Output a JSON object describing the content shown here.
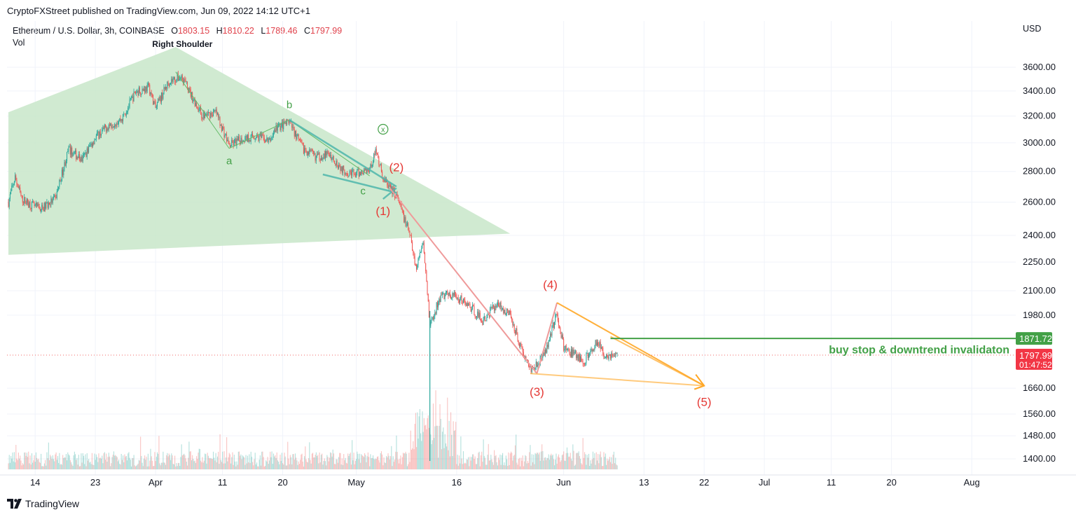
{
  "header": {
    "published_by": "CryptoFXStreet published on TradingView.com, Jun 09, 2022 14:12 UTC+1"
  },
  "legend": {
    "symbol": "Ethereum / U.S. Dollar, 3h, COINBASE",
    "open_label": "O",
    "open": "1803.15",
    "high_label": "H",
    "high": "1810.22",
    "low_label": "L",
    "low": "1789.46",
    "close_label": "C",
    "close": "1797.99",
    "volume_label": "Vol"
  },
  "footer": {
    "brand": "TradingView"
  },
  "colors": {
    "up": "#26a69a",
    "down": "#ef5350",
    "pattern_fill": "#c8e6c9",
    "green_line": "#43a047",
    "orange": "#ffa726",
    "red_text": "#e53935",
    "teal_line": "#4db6ac"
  },
  "chart_data": {
    "type": "candlestick",
    "currency": "USD",
    "y_scale": "log",
    "y_ticks": [
      3600,
      3400,
      3200,
      3000,
      2800,
      2600,
      2400,
      2250,
      2100,
      1980,
      1660,
      1560,
      1480,
      1400
    ],
    "y_tick_labels": [
      "3600.00",
      "3400.00",
      "3200.00",
      "3000.00",
      "2800.00",
      "2600.00",
      "2400.00",
      "2250.00",
      "2100.00",
      "1980.00",
      "1660.00",
      "1560.00",
      "1480.00",
      "1400.00"
    ],
    "x_ticks": [
      "14",
      "23",
      "Apr",
      "11",
      "20",
      "May",
      "16",
      "Jun",
      "13",
      "22",
      "Jul",
      "11",
      "20",
      "Aug"
    ],
    "price_path": [
      {
        "date": "2022-03-10",
        "price": 2600
      },
      {
        "date": "2022-03-11",
        "price": 2760
      },
      {
        "date": "2022-03-12",
        "price": 2620
      },
      {
        "date": "2022-03-14",
        "price": 2570
      },
      {
        "date": "2022-03-15",
        "price": 2560
      },
      {
        "date": "2022-03-17",
        "price": 2620
      },
      {
        "date": "2022-03-19",
        "price": 2950
      },
      {
        "date": "2022-03-21",
        "price": 2880
      },
      {
        "date": "2022-03-23",
        "price": 3040
      },
      {
        "date": "2022-03-25",
        "price": 3130
      },
      {
        "date": "2022-03-27",
        "price": 3180
      },
      {
        "date": "2022-03-29",
        "price": 3390
      },
      {
        "date": "2022-03-31",
        "price": 3430
      },
      {
        "date": "2022-04-01",
        "price": 3260
      },
      {
        "date": "2022-04-03",
        "price": 3480
      },
      {
        "date": "2022-04-05",
        "price": 3520
      },
      {
        "date": "2022-04-06",
        "price": 3400
      },
      {
        "date": "2022-04-08",
        "price": 3200
      },
      {
        "date": "2022-04-10",
        "price": 3230
      },
      {
        "date": "2022-04-12",
        "price": 2980
      },
      {
        "date": "2022-04-14",
        "price": 3030
      },
      {
        "date": "2022-04-16",
        "price": 3050
      },
      {
        "date": "2022-04-18",
        "price": 3010
      },
      {
        "date": "2022-04-19",
        "price": 3110
      },
      {
        "date": "2022-04-21",
        "price": 3150
      },
      {
        "date": "2022-04-23",
        "price": 2960
      },
      {
        "date": "2022-04-25",
        "price": 2900
      },
      {
        "date": "2022-04-27",
        "price": 2920
      },
      {
        "date": "2022-04-29",
        "price": 2810
      },
      {
        "date": "2022-05-01",
        "price": 2780
      },
      {
        "date": "2022-05-03",
        "price": 2820
      },
      {
        "date": "2022-05-04",
        "price": 2950
      },
      {
        "date": "2022-05-05",
        "price": 2750
      },
      {
        "date": "2022-05-07",
        "price": 2640
      },
      {
        "date": "2022-05-08",
        "price": 2520
      },
      {
        "date": "2022-05-09",
        "price": 2400
      },
      {
        "date": "2022-05-10",
        "price": 2210
      },
      {
        "date": "2022-05-11",
        "price": 2380
      },
      {
        "date": "2022-05-12",
        "price": 1930
      },
      {
        "date": "2022-05-13",
        "price": 2020
      },
      {
        "date": "2022-05-14",
        "price": 2080
      },
      {
        "date": "2022-05-16",
        "price": 2070
      },
      {
        "date": "2022-05-18",
        "price": 2020
      },
      {
        "date": "2022-05-20",
        "price": 1950
      },
      {
        "date": "2022-05-22",
        "price": 2040
      },
      {
        "date": "2022-05-24",
        "price": 1980
      },
      {
        "date": "2022-05-26",
        "price": 1800
      },
      {
        "date": "2022-05-27",
        "price": 1740
      },
      {
        "date": "2022-05-29",
        "price": 1790
      },
      {
        "date": "2022-05-31",
        "price": 1990
      },
      {
        "date": "2022-06-01",
        "price": 1830
      },
      {
        "date": "2022-06-03",
        "price": 1790
      },
      {
        "date": "2022-06-04",
        "price": 1770
      },
      {
        "date": "2022-06-06",
        "price": 1860
      },
      {
        "date": "2022-06-07",
        "price": 1800
      },
      {
        "date": "2022-06-09",
        "price": 1798
      }
    ],
    "last_price": {
      "value": "1797.99",
      "countdown": "01:47:52"
    },
    "annotations": {
      "right_shoulder": "Right Shoulder",
      "wave_abc": [
        "a",
        "b",
        "c"
      ],
      "wave_x": "x",
      "impulse_waves": [
        "(1)",
        "(2)",
        "(3)",
        "(4)",
        "(5)"
      ],
      "invalidation_level": {
        "value": 1871.72,
        "label": "1871.72",
        "text": "buy stop & downtrend invalidaton"
      }
    }
  }
}
